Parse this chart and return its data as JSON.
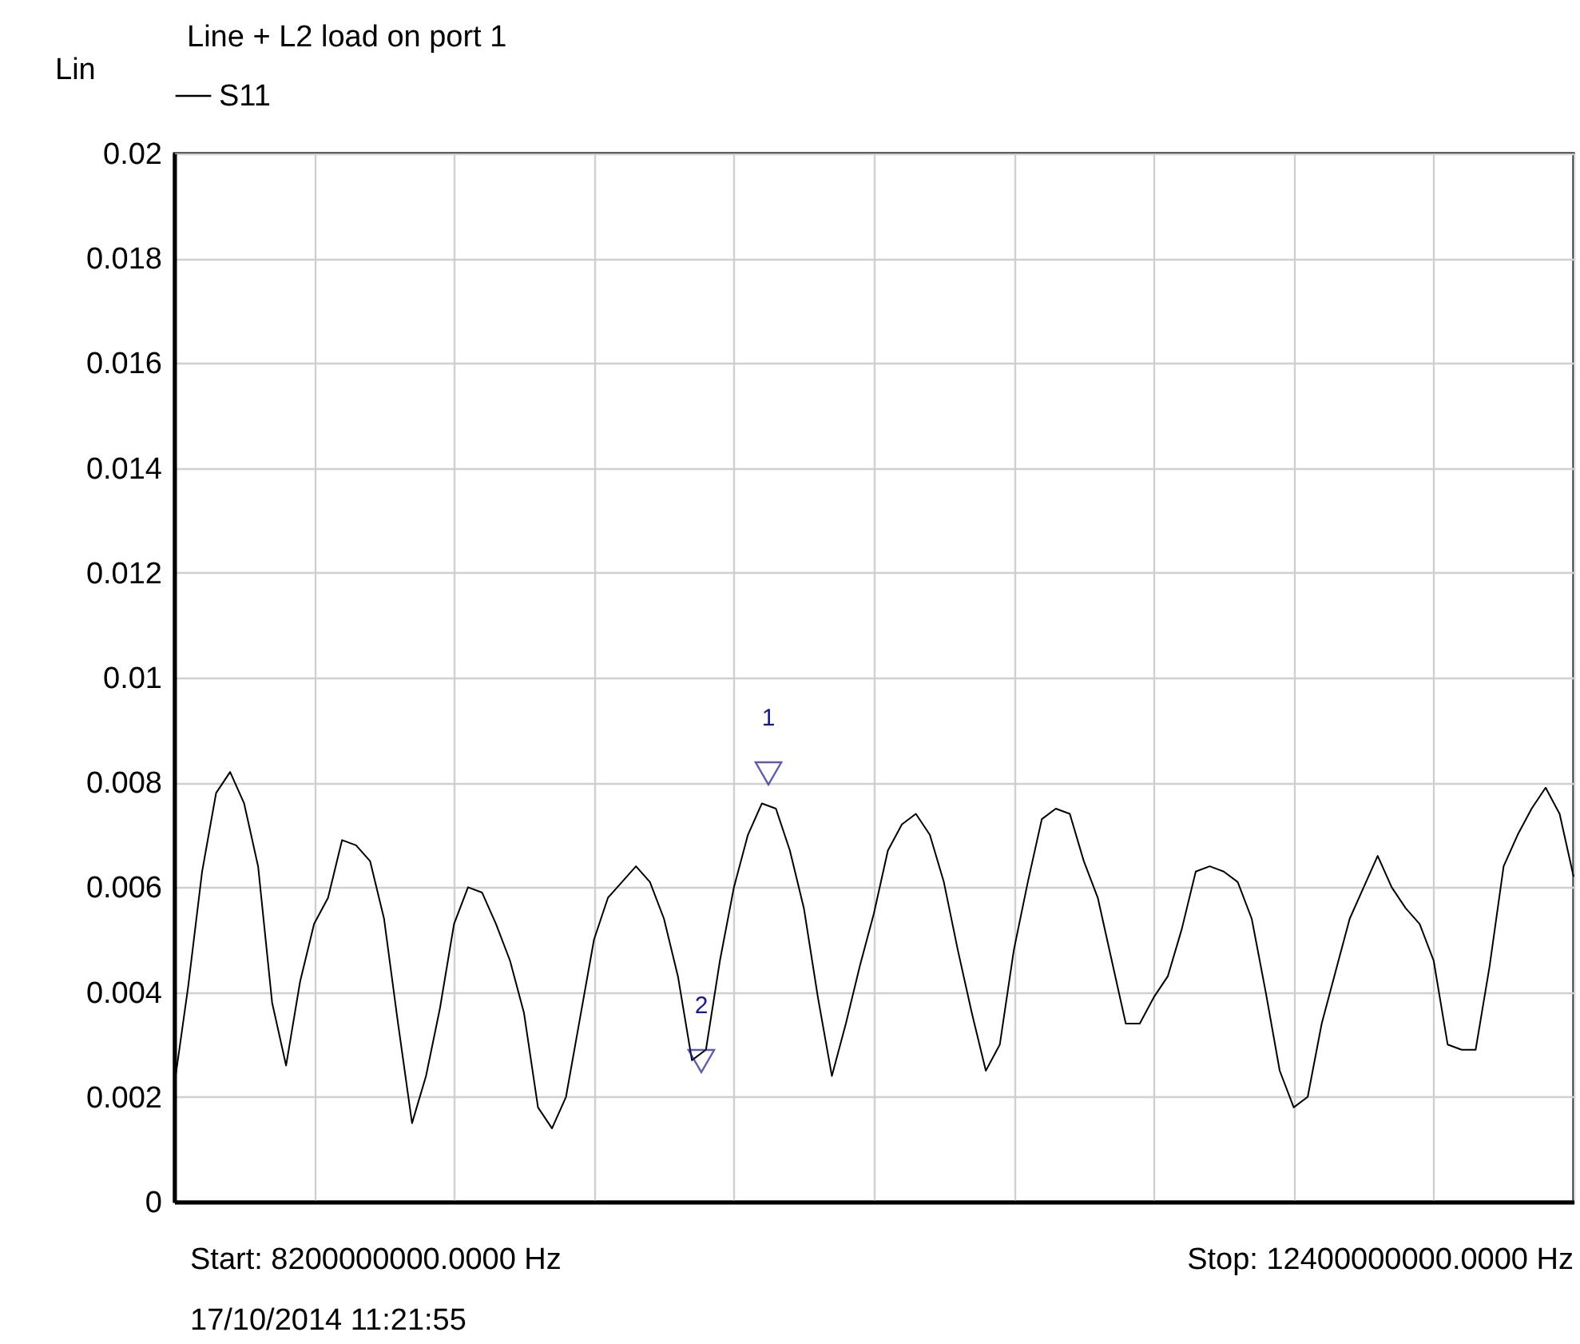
{
  "chart_data": {
    "type": "line",
    "title": "Line + L2 load on port 1",
    "ylabel": "Lin",
    "categories": [
      null,
      null,
      null,
      null,
      null,
      null,
      null,
      null,
      null,
      null,
      null,
      null,
      null,
      null,
      null,
      null,
      null,
      null,
      null,
      null,
      null,
      null,
      null,
      null,
      null,
      null,
      null,
      null,
      null,
      null,
      null,
      null,
      null,
      null,
      null,
      null,
      null,
      null,
      null,
      null,
      null,
      null,
      null,
      null,
      null,
      null,
      null,
      null,
      null,
      null,
      null,
      null,
      null,
      null,
      null,
      null,
      null,
      null,
      null,
      null,
      null,
      null,
      null,
      null,
      null,
      null,
      null,
      null,
      null,
      null,
      null,
      null,
      null,
      null,
      null,
      null,
      null,
      null,
      null,
      null,
      null,
      null,
      null,
      null,
      null,
      null,
      null,
      null,
      null,
      null,
      null,
      null,
      null,
      null,
      null,
      null,
      null,
      null,
      null,
      null,
      null
    ],
    "ylim": [
      0,
      0.02
    ],
    "yticks": [
      0,
      0.002,
      0.004,
      0.006,
      0.008,
      0.01,
      0.012,
      0.014,
      0.016,
      0.018,
      0.02
    ],
    "grid": true,
    "legend": "top left",
    "tick_labels": "y",
    "line_style": "solid",
    "series": [
      {
        "name": "S11",
        "color": "#000000",
        "values": [
          0.0022,
          0.0041,
          0.0063,
          0.0078,
          0.0082,
          0.0076,
          0.0064,
          0.0038,
          0.0026,
          0.0042,
          0.0053,
          0.0058,
          0.0069,
          0.0068,
          0.0065,
          0.0054,
          0.0034,
          0.0015,
          0.0024,
          0.0037,
          0.0053,
          0.006,
          0.0059,
          0.0053,
          0.0046,
          0.0036,
          0.0018,
          0.0014,
          0.002,
          0.0035,
          0.005,
          0.0058,
          0.0061,
          0.0064,
          0.0061,
          0.0054,
          0.0043,
          0.0027,
          0.0029,
          0.0046,
          0.006,
          0.007,
          0.0076,
          0.0075,
          0.0067,
          0.0056,
          0.0039,
          0.0024,
          0.0034,
          0.0045,
          0.0055,
          0.0067,
          0.0072,
          0.0074,
          0.007,
          0.0061,
          0.0048,
          0.0036,
          0.0025,
          0.003,
          0.0048,
          0.0061,
          0.0073,
          0.0075,
          0.0074,
          0.0065,
          0.0058,
          0.0046,
          0.0034,
          0.0034,
          0.0039,
          0.0043,
          0.0052,
          0.0063,
          0.0064,
          0.0063,
          0.0061,
          0.0054,
          0.004,
          0.0025,
          0.0018,
          0.002,
          0.0034,
          0.0044,
          0.0054,
          0.006,
          0.0066,
          0.006,
          0.0056,
          0.0053,
          0.0046,
          0.003,
          0.0029,
          0.0029,
          0.0045,
          0.0064,
          0.007,
          0.0075,
          0.0079,
          0.0074,
          0.0062
        ]
      }
    ],
    "annotations": [
      "1",
      "2",
      "Start: 8200000000.0000 Hz",
      "Stop: 12400000000.0000 Hz",
      "17/10/2014 11:21:55"
    ]
  }
}
